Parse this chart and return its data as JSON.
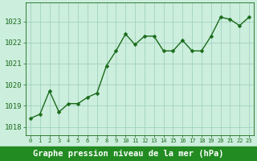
{
  "x": [
    0,
    1,
    2,
    3,
    4,
    5,
    6,
    7,
    8,
    9,
    10,
    11,
    12,
    13,
    14,
    15,
    16,
    17,
    18,
    19,
    20,
    21,
    22,
    23
  ],
  "y": [
    1018.4,
    1018.6,
    1019.7,
    1018.7,
    1019.1,
    1019.1,
    1019.4,
    1019.6,
    1020.9,
    1021.6,
    1022.4,
    1021.9,
    1022.3,
    1022.3,
    1021.6,
    1021.6,
    1022.1,
    1021.6,
    1021.6,
    1022.3,
    1023.2,
    1023.1,
    1022.8,
    1023.2
  ],
  "line_color": "#1a6b1a",
  "marker": "D",
  "marker_size": 2.5,
  "line_width": 1.0,
  "plot_bg_color": "#cceedd",
  "fig_bg_color": "#cceedd",
  "xlabel_bg_color": "#228B22",
  "grid_color": "#99ccbb",
  "xlabel": "Graphe pression niveau de la mer (hPa)",
  "xlabel_color": "#ffffff",
  "xlabel_fontsize": 7.5,
  "tick_color": "#1a6b1a",
  "tick_fontsize": 6.5,
  "ylim": [
    1017.6,
    1023.9
  ],
  "yticks": [
    1018,
    1019,
    1020,
    1021,
    1022,
    1023
  ],
  "xlim": [
    -0.5,
    23.5
  ],
  "xticks": [
    0,
    1,
    2,
    3,
    4,
    5,
    6,
    7,
    8,
    9,
    10,
    11,
    12,
    13,
    14,
    15,
    16,
    17,
    18,
    19,
    20,
    21,
    22,
    23
  ]
}
